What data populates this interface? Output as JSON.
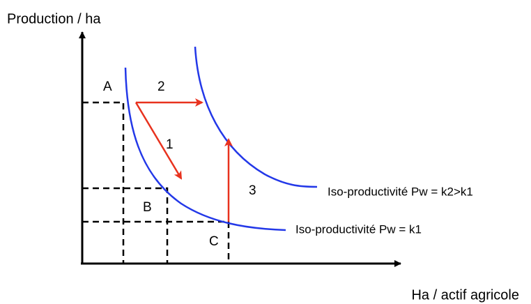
{
  "axes": {
    "y_label": "Production / ha",
    "x_label": "Ha / actif agricole"
  },
  "points": [
    {
      "label": "A"
    },
    {
      "label": "B"
    },
    {
      "label": "C"
    }
  ],
  "arrows": [
    {
      "label": "1"
    },
    {
      "label": "2"
    },
    {
      "label": "3"
    }
  ],
  "curves": [
    {
      "label": "Iso-productivité Pw = k1"
    },
    {
      "label": "Iso-productivité Pw = k2>k1"
    }
  ]
}
